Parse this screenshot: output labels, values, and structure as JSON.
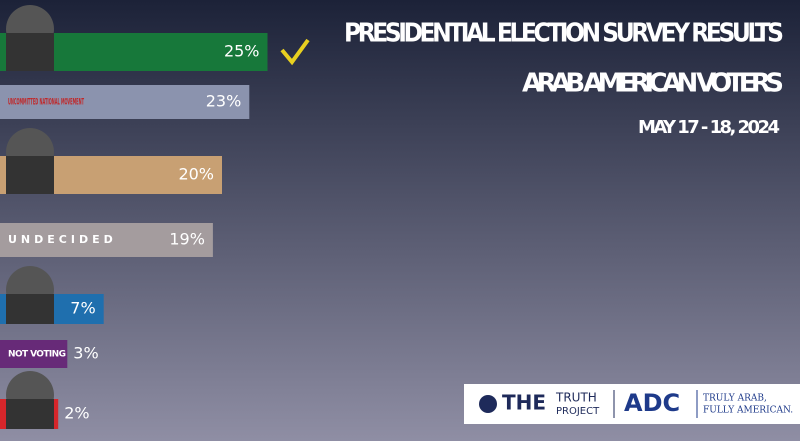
{
  "chart_data": {
    "type": "hbar",
    "title": "PRESIDENTIAL ELECTION SURVEY RESULTS",
    "subtitle": "ARAB AMERICAN VOTERS",
    "date": "MAY 17 - 18, 2024",
    "categories": [
      null,
      "UNCOMMITTED NATIONAL MOVEMENT",
      null,
      "UNDECIDED",
      null,
      "NOT VOTING",
      null
    ],
    "values": [
      25,
      23,
      20,
      19,
      7,
      3,
      2
    ],
    "value_labels": [
      "25%",
      "23%",
      "20%",
      "19%",
      "7%",
      "3%",
      "2%"
    ],
    "colors": [
      "#17783a",
      "#8b93ae",
      "#c8a073",
      "#a49c9e",
      "#1f6fae",
      "#672a78",
      "#d6262b"
    ]
  },
  "logos": {
    "truth_the": "THE",
    "truth_truth": "TRUTH",
    "truth_project": "PROJECT",
    "adc": "ADC",
    "adc_line1": "TRULY ARAB,",
    "adc_line2": "FULLY AMERICAN."
  }
}
